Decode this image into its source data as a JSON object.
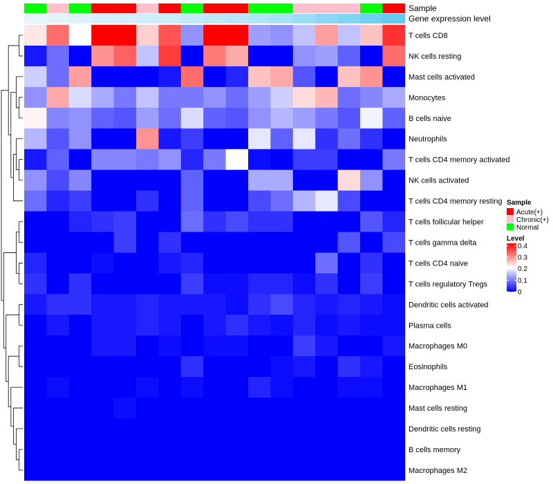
{
  "chart_data": {
    "type": "heatmap",
    "annotation_labels": [
      "Sample",
      "Gene expression level"
    ],
    "sample_annotation": [
      "Normal",
      "Chronic(+)",
      "Normal",
      "Acute(+)",
      "Acute(+)",
      "Chronic(+)",
      "Acute(+)",
      "Normal",
      "Acute(+)",
      "Acute(+)",
      "Normal",
      "Normal",
      "Chronic(+)",
      "Chronic(+)",
      "Chronic(+)",
      "Normal",
      "Acute(+)"
    ],
    "expression_annotation": [
      0.02,
      0.05,
      0.08,
      0.12,
      0.15,
      0.18,
      0.22,
      0.26,
      0.3,
      0.34,
      0.4,
      0.45,
      0.55,
      0.65,
      0.75,
      0.85,
      0.95
    ],
    "rows": [
      "T cells CD8",
      "NK cells resting",
      "Mast cells activated",
      "Monocytes",
      "B cells naive",
      "Neutrophils",
      "T cells CD4 memory activated",
      "NK cells activated",
      "T cells CD4 memory resting",
      "T cells follicular helper",
      "T cells gamma delta",
      "T cells CD4 naive",
      "T cells regulatory  Tregs",
      "Dendritic cells activated",
      "Plasma cells",
      "Macrophages M0",
      "Eosinophils",
      "Macrophages M1",
      "Mast cells resting",
      "Dendritic cells resting",
      "B cells memory",
      "Macrophages M2"
    ],
    "values": [
      [
        0.23,
        0.33,
        0.21,
        0.42,
        0.42,
        0.25,
        0.35,
        0.12,
        0.42,
        0.42,
        0.13,
        0.12,
        0.16,
        0.29,
        0.16,
        0.26,
        0.38
      ],
      [
        0.02,
        0.09,
        0.0,
        0.3,
        0.34,
        0.16,
        0.37,
        0.0,
        0.32,
        0.28,
        0.0,
        0.0,
        0.12,
        0.13,
        0.08,
        0.0,
        0.33
      ],
      [
        0.17,
        0.09,
        0.29,
        0.0,
        0.0,
        0.0,
        0.02,
        0.33,
        0.0,
        0.03,
        0.26,
        0.28,
        0.07,
        0.0,
        0.26,
        0.3,
        0.0
      ],
      [
        0.12,
        0.28,
        0.18,
        0.14,
        0.1,
        0.16,
        0.1,
        0.1,
        0.12,
        0.09,
        0.13,
        0.17,
        0.24,
        0.27,
        0.09,
        0.11,
        0.14
      ],
      [
        0.22,
        0.11,
        0.12,
        0.08,
        0.07,
        0.13,
        0.09,
        0.18,
        0.08,
        0.07,
        0.12,
        0.15,
        0.13,
        0.1,
        0.07,
        0.2,
        0.08
      ],
      [
        0.15,
        0.07,
        0.12,
        0.0,
        0.0,
        0.3,
        0.02,
        0.05,
        0.0,
        0.0,
        0.19,
        0.08,
        0.19,
        0.04,
        0.09,
        0.04,
        0.0
      ],
      [
        0.02,
        0.08,
        0.0,
        0.11,
        0.11,
        0.1,
        0.12,
        0.03,
        0.1,
        0.21,
        0.01,
        0.0,
        0.05,
        0.05,
        0.0,
        0.0,
        0.1
      ],
      [
        0.12,
        0.06,
        0.11,
        0.0,
        0.0,
        0.0,
        0.0,
        0.08,
        0.0,
        0.0,
        0.14,
        0.14,
        0.0,
        0.0,
        0.24,
        0.12,
        0.0
      ],
      [
        0.09,
        0.03,
        0.05,
        0.0,
        0.0,
        0.04,
        0.0,
        0.08,
        0.0,
        0.0,
        0.06,
        0.09,
        0.15,
        0.19,
        0.06,
        0.0,
        0.0
      ],
      [
        0.0,
        0.0,
        0.03,
        0.04,
        0.05,
        0.0,
        0.0,
        0.09,
        0.04,
        0.06,
        0.04,
        0.04,
        0.0,
        0.0,
        0.0,
        0.07,
        0.03
      ],
      [
        0.0,
        0.0,
        0.0,
        0.0,
        0.05,
        0.0,
        0.04,
        0.0,
        0.0,
        0.0,
        0.0,
        0.0,
        0.0,
        0.0,
        0.07,
        0.0,
        0.06
      ],
      [
        0.03,
        0.0,
        0.0,
        0.01,
        0.0,
        0.0,
        0.02,
        0.03,
        0.0,
        0.0,
        0.0,
        0.0,
        0.0,
        0.09,
        0.0,
        0.04,
        0.0
      ],
      [
        0.04,
        0.0,
        0.04,
        0.0,
        0.0,
        0.0,
        0.0,
        0.05,
        0.01,
        0.01,
        0.03,
        0.03,
        0.01,
        0.04,
        0.0,
        0.05,
        0.0
      ],
      [
        0.02,
        0.04,
        0.04,
        0.02,
        0.02,
        0.03,
        0.02,
        0.02,
        0.02,
        0.01,
        0.04,
        0.06,
        0.03,
        0.02,
        0.03,
        0.02,
        0.01
      ],
      [
        0.0,
        0.02,
        0.0,
        0.02,
        0.02,
        0.03,
        0.02,
        0.0,
        0.02,
        0.04,
        0.02,
        0.01,
        0.03,
        0.01,
        0.02,
        0.01,
        0.01
      ],
      [
        0.0,
        0.0,
        0.0,
        0.02,
        0.02,
        0.0,
        0.01,
        0.0,
        0.01,
        0.01,
        0.0,
        0.0,
        0.05,
        0.02,
        0.0,
        0.0,
        0.02
      ],
      [
        0.0,
        0.0,
        0.0,
        0.0,
        0.0,
        0.0,
        0.0,
        0.04,
        0.0,
        0.0,
        0.0,
        0.01,
        0.02,
        0.0,
        0.04,
        0.02,
        0.0
      ],
      [
        0.0,
        0.01,
        0.0,
        0.0,
        0.0,
        0.01,
        0.0,
        0.01,
        0.0,
        0.0,
        0.03,
        0.01,
        0.0,
        0.0,
        0.01,
        0.01,
        0.0
      ],
      [
        0.0,
        0.0,
        0.0,
        0.0,
        0.01,
        0.0,
        0.0,
        0.0,
        0.0,
        0.0,
        0.0,
        0.0,
        0.0,
        0.0,
        0.0,
        0.0,
        0.0
      ],
      [
        0.0,
        0.0,
        0.0,
        0.0,
        0.0,
        0.0,
        0.0,
        0.0,
        0.0,
        0.0,
        0.0,
        0.0,
        0.0,
        0.0,
        0.0,
        0.0,
        0.0
      ],
      [
        0.0,
        0.0,
        0.0,
        0.0,
        0.0,
        0.0,
        0.0,
        0.0,
        0.0,
        0.0,
        0.0,
        0.0,
        0.0,
        0.0,
        0.0,
        0.0,
        0.0
      ],
      [
        0.0,
        0.0,
        0.0,
        0.0,
        0.0,
        0.0,
        0.0,
        0.0,
        0.0,
        0.0,
        0.0,
        0.0,
        0.0,
        0.0,
        0.0,
        0.0,
        0.0
      ]
    ],
    "value_range": [
      0,
      0.42
    ],
    "legend": {
      "sample_title": "Sample",
      "sample_entries": [
        {
          "label": "Acute(+)",
          "color": "#ff0000"
        },
        {
          "label": "Chronic(+)",
          "color": "#ffc0cb"
        },
        {
          "label": "Normal",
          "color": "#00ff00"
        }
      ],
      "level_title": "Level",
      "level_ticks": [
        0.4,
        0.3,
        0.2,
        0.1,
        0
      ],
      "level_tick_labels": [
        "0.4",
        "0.3",
        "0.2",
        "0.1",
        "0"
      ]
    },
    "colors": {
      "low": "#0000ff",
      "mid": "#ffffff",
      "high": "#ff0000",
      "expr_low": "#e8f6fc",
      "expr_high": "#5bc8f0"
    }
  }
}
